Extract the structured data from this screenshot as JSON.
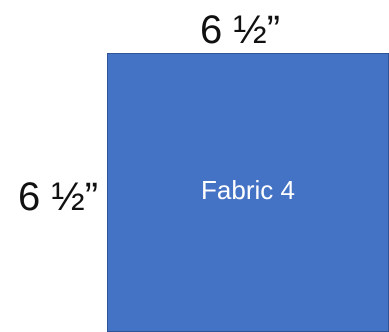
{
  "diagram": {
    "width_label": "6 ½”",
    "height_label": "6 ½”",
    "square": {
      "label": "Fabric 4",
      "fill_color": "#4472c4",
      "label_color": "#ffffff"
    }
  }
}
